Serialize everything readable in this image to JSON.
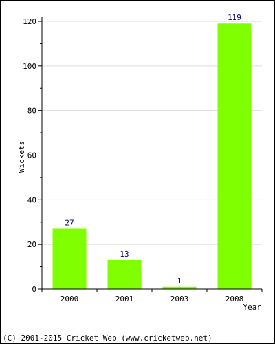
{
  "chart_data": {
    "type": "bar",
    "categories": [
      "2000",
      "2001",
      "2003",
      "2008"
    ],
    "values": [
      27,
      13,
      1,
      119
    ],
    "title": "",
    "xlabel": "Year",
    "ylabel": "Wickets",
    "ylim": [
      0,
      120
    ],
    "yticks": [
      0,
      20,
      40,
      60,
      80,
      100,
      120
    ],
    "grid": true,
    "bar_color": "#80ff00",
    "value_label_color": "#000080"
  },
  "footer": {
    "copyright": "(C) 2001-2015 Cricket Web (www.cricketweb.net)"
  }
}
